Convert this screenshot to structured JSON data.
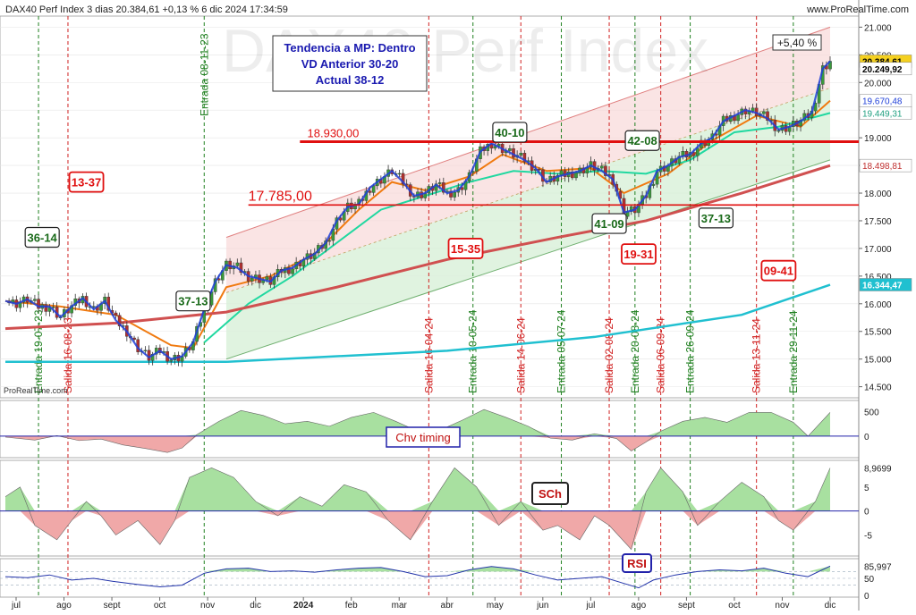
{
  "header": {
    "title": "DAX40 Perf Index 3 dias 20.384,61 +0,13 % 6 dic 2024 17:34:59",
    "url": "www.ProRealTime.com",
    "source_tag": "ProRealTime.com",
    "watermark": "DAX40 Perf Index"
  },
  "colors": {
    "price_up": "#1f3fd8",
    "price_down": "#e02020",
    "ma_fast": "#f07a10",
    "ma_mid": "#20d8a0",
    "ma_slow": "#d05050",
    "ma_long": "#20c0d0",
    "resistance": "#e01010",
    "channel_upper_fill": "#f8d8d8",
    "channel_lower_fill": "#d8f0d8",
    "osc_pos": "#a8e0a0",
    "osc_neg": "#f0a8a8",
    "entry_line": "#208020",
    "exit_line": "#d02020"
  },
  "info_box": {
    "line1": "Tendencia a MP: Dentro",
    "line2": "VD Anterior 30-20",
    "line3": "Actual 38-12"
  },
  "chart_data": [
    {
      "type": "candlestick",
      "title": "DAX40 Perf Index 3 dias",
      "ylim": [
        14300,
        21200
      ],
      "y_ticks": [
        "21.000",
        "20.500",
        "20.000",
        "19.500",
        "19.000",
        "18.500",
        "18.000",
        "17.500",
        "17.000",
        "16.500",
        "16.000",
        "15.500",
        "15.000",
        "14.500"
      ],
      "x_ticks": [
        "jul",
        "ago",
        "sept",
        "oct",
        "nov",
        "dic",
        "2024",
        "feb",
        "mar",
        "abr",
        "may",
        "jun",
        "jul",
        "ago",
        "sept",
        "oct",
        "nov",
        "dic"
      ],
      "close_path": [
        [
          0,
          16050
        ],
        [
          3,
          16000
        ],
        [
          6,
          16080
        ],
        [
          9,
          15950
        ],
        [
          12,
          15950
        ],
        [
          15,
          15760
        ],
        [
          18,
          15950
        ],
        [
          21,
          16100
        ],
        [
          24,
          15900
        ],
        [
          27,
          16050
        ],
        [
          30,
          15700
        ],
        [
          33,
          15500
        ],
        [
          36,
          15200
        ],
        [
          39,
          15030
        ],
        [
          42,
          15150
        ],
        [
          45,
          15000
        ],
        [
          48,
          15050
        ],
        [
          51,
          15300
        ],
        [
          54,
          15900
        ],
        [
          57,
          16400
        ],
        [
          60,
          16700
        ],
        [
          63,
          16650
        ],
        [
          66,
          16500
        ],
        [
          69,
          16450
        ],
        [
          72,
          16400
        ],
        [
          75,
          16600
        ],
        [
          78,
          16650
        ],
        [
          81,
          16800
        ],
        [
          84,
          16900
        ],
        [
          87,
          17100
        ],
        [
          90,
          17500
        ],
        [
          93,
          17750
        ],
        [
          96,
          17800
        ],
        [
          99,
          18100
        ],
        [
          102,
          18250
        ],
        [
          105,
          18400
        ],
        [
          108,
          18200
        ],
        [
          111,
          17950
        ],
        [
          114,
          18000
        ],
        [
          117,
          18150
        ],
        [
          120,
          18000
        ],
        [
          123,
          18050
        ],
        [
          126,
          18300
        ],
        [
          129,
          18750
        ],
        [
          132,
          18900
        ],
        [
          135,
          18800
        ],
        [
          138,
          18700
        ],
        [
          141,
          18600
        ],
        [
          144,
          18450
        ],
        [
          147,
          18200
        ],
        [
          150,
          18300
        ],
        [
          153,
          18350
        ],
        [
          156,
          18400
        ],
        [
          159,
          18500
        ],
        [
          162,
          18400
        ],
        [
          165,
          18250
        ],
        [
          168,
          17650
        ],
        [
          171,
          17700
        ],
        [
          174,
          17950
        ],
        [
          177,
          18400
        ],
        [
          180,
          18500
        ],
        [
          183,
          18650
        ],
        [
          186,
          18700
        ],
        [
          189,
          18900
        ],
        [
          192,
          19000
        ],
        [
          195,
          19300
        ],
        [
          198,
          19400
        ],
        [
          201,
          19500
        ],
        [
          204,
          19450
        ],
        [
          207,
          19350
        ],
        [
          210,
          19150
        ],
        [
          213,
          19200
        ],
        [
          216,
          19300
        ],
        [
          219,
          19450
        ],
        [
          222,
          20250
        ],
        [
          224,
          20384
        ]
      ],
      "moving_averages": [
        {
          "name": "ma_fast",
          "color": "#f07a10",
          "points": [
            [
              0,
              16050
            ],
            [
              15,
              15950
            ],
            [
              30,
              15800
            ],
            [
              45,
              15250
            ],
            [
              51,
              15200
            ],
            [
              60,
              16300
            ],
            [
              72,
              16500
            ],
            [
              84,
              16900
            ],
            [
              96,
              17700
            ],
            [
              105,
              18200
            ],
            [
              114,
              18050
            ],
            [
              126,
              18300
            ],
            [
              135,
              18700
            ],
            [
              147,
              18400
            ],
            [
              159,
              18450
            ],
            [
              168,
              18000
            ],
            [
              180,
              18350
            ],
            [
              192,
              18950
            ],
            [
              204,
              19400
            ],
            [
              216,
              19200
            ],
            [
              224,
              19670
            ]
          ]
        },
        {
          "name": "ma_mid",
          "color": "#20d8a0",
          "points": [
            [
              54,
              15300
            ],
            [
              66,
              16000
            ],
            [
              78,
              16500
            ],
            [
              90,
              17100
            ],
            [
              102,
              17700
            ],
            [
              114,
              17950
            ],
            [
              126,
              18200
            ],
            [
              138,
              18400
            ],
            [
              150,
              18350
            ],
            [
              162,
              18400
            ],
            [
              174,
              18350
            ],
            [
              186,
              18600
            ],
            [
              198,
              19100
            ],
            [
              210,
              19200
            ],
            [
              224,
              19449
            ]
          ]
        },
        {
          "name": "ma_slow",
          "color": "#d05050",
          "points": [
            [
              0,
              15550
            ],
            [
              30,
              15650
            ],
            [
              60,
              15850
            ],
            [
              90,
              16300
            ],
            [
              120,
              16800
            ],
            [
              150,
              17200
            ],
            [
              174,
              17500
            ],
            [
              200,
              18000
            ],
            [
              224,
              18498
            ]
          ]
        },
        {
          "name": "ma_long",
          "color": "#20c0d0",
          "points": [
            [
              0,
              14950
            ],
            [
              60,
              14950
            ],
            [
              120,
              15150
            ],
            [
              160,
              15400
            ],
            [
              200,
              15800
            ],
            [
              224,
              16344
            ]
          ]
        }
      ],
      "price_labels": [
        {
          "value": 21000,
          "text": "",
          "type": "tick"
        },
        {
          "value": 20384.61,
          "text": "20.384,61",
          "style": "last"
        },
        {
          "value": 20249.92,
          "text": "20.249,92",
          "style": "plain"
        },
        {
          "value": 19670.48,
          "text": "19.670,48",
          "style": "blue"
        },
        {
          "value": 19449.31,
          "text": "19.449,31",
          "style": "green"
        },
        {
          "value": 18498.81,
          "text": "18.498,81",
          "style": "red"
        },
        {
          "value": 16344.47,
          "text": "16.344,47",
          "style": "cyan"
        }
      ],
      "resistance_lines": [
        {
          "label": "18.930,00",
          "value": 18930
        },
        {
          "label": "17.785,00",
          "value": 17785
        }
      ],
      "change_badge": "+5,40 %",
      "score_labels": [
        {
          "text": "36-14",
          "kind": "green"
        },
        {
          "text": "13-37",
          "kind": "red"
        },
        {
          "text": "37-13",
          "kind": "green"
        },
        {
          "text": "15-35",
          "kind": "red"
        },
        {
          "text": "40-10",
          "kind": "green"
        },
        {
          "text": "41-09",
          "kind": "green"
        },
        {
          "text": "42-08",
          "kind": "green"
        },
        {
          "text": "19-31",
          "kind": "red"
        },
        {
          "text": "37-13",
          "kind": "green"
        },
        {
          "text": "09-41",
          "kind": "red"
        }
      ],
      "signals": [
        {
          "text": "Entrada 19-07-23",
          "kind": "entry"
        },
        {
          "text": "Salida 16-08-23",
          "kind": "exit"
        },
        {
          "text": "Entrada 08-11-23",
          "kind": "entry"
        },
        {
          "text": "Salida 16-04-24",
          "kind": "exit"
        },
        {
          "text": "Entrada 10-05-24",
          "kind": "entry"
        },
        {
          "text": "Salida 14-06-24",
          "kind": "exit"
        },
        {
          "text": "Entrada 05-07-24",
          "kind": "entry"
        },
        {
          "text": "Salida 02-08-24",
          "kind": "exit"
        },
        {
          "text": "Entrada 20-08-24",
          "kind": "entry"
        },
        {
          "text": "Salida 06-09-24",
          "kind": "exit"
        },
        {
          "text": "Entrada 26-09-24",
          "kind": "entry"
        },
        {
          "text": "Salida 13-11-24",
          "kind": "exit"
        },
        {
          "text": "Entrada 29-11-24",
          "kind": "entry"
        }
      ]
    },
    {
      "type": "area",
      "title": "Chv timing",
      "y_ticks": [
        "500",
        "0"
      ],
      "points": [
        [
          0,
          -20
        ],
        [
          8,
          -80
        ],
        [
          14,
          10
        ],
        [
          20,
          -90
        ],
        [
          26,
          -60
        ],
        [
          32,
          -180
        ],
        [
          38,
          -250
        ],
        [
          44,
          -330
        ],
        [
          48,
          -240
        ],
        [
          52,
          30
        ],
        [
          58,
          300
        ],
        [
          64,
          520
        ],
        [
          70,
          420
        ],
        [
          76,
          250
        ],
        [
          82,
          300
        ],
        [
          88,
          200
        ],
        [
          94,
          380
        ],
        [
          100,
          480
        ],
        [
          106,
          300
        ],
        [
          112,
          100
        ],
        [
          118,
          120
        ],
        [
          124,
          320
        ],
        [
          130,
          540
        ],
        [
          136,
          380
        ],
        [
          142,
          200
        ],
        [
          148,
          -40
        ],
        [
          154,
          -80
        ],
        [
          160,
          50
        ],
        [
          166,
          -50
        ],
        [
          170,
          -300
        ],
        [
          174,
          -120
        ],
        [
          178,
          100
        ],
        [
          184,
          300
        ],
        [
          190,
          380
        ],
        [
          196,
          280
        ],
        [
          202,
          480
        ],
        [
          208,
          480
        ],
        [
          214,
          280
        ],
        [
          218,
          0
        ],
        [
          224,
          480
        ]
      ]
    },
    {
      "type": "area",
      "title": "SCh",
      "y_ticks": [
        "8,9699",
        "5",
        "0",
        "-5"
      ],
      "points": [
        [
          0,
          3
        ],
        [
          4,
          5
        ],
        [
          8,
          -3
        ],
        [
          14,
          -6
        ],
        [
          18,
          -2
        ],
        [
          22,
          2
        ],
        [
          26,
          -1
        ],
        [
          30,
          -5
        ],
        [
          36,
          -2
        ],
        [
          42,
          -7
        ],
        [
          46,
          -2
        ],
        [
          50,
          7
        ],
        [
          56,
          9
        ],
        [
          62,
          7
        ],
        [
          68,
          2
        ],
        [
          74,
          -1
        ],
        [
          80,
          3
        ],
        [
          86,
          1
        ],
        [
          92,
          5.5
        ],
        [
          98,
          4
        ],
        [
          104,
          -2
        ],
        [
          110,
          -6
        ],
        [
          116,
          2
        ],
        [
          122,
          9
        ],
        [
          128,
          5
        ],
        [
          134,
          -3
        ],
        [
          140,
          2
        ],
        [
          146,
          -4
        ],
        [
          150,
          -3
        ],
        [
          156,
          -6
        ],
        [
          160,
          -1
        ],
        [
          164,
          -3
        ],
        [
          170,
          -8
        ],
        [
          174,
          4
        ],
        [
          178,
          9
        ],
        [
          184,
          4
        ],
        [
          188,
          -3
        ],
        [
          194,
          2
        ],
        [
          200,
          6
        ],
        [
          206,
          3
        ],
        [
          210,
          -2
        ],
        [
          214,
          -4
        ],
        [
          220,
          2
        ],
        [
          224,
          8.97
        ]
      ]
    },
    {
      "type": "line",
      "title": "RSI",
      "y_ticks": [
        "85,997",
        "50",
        "0"
      ],
      "points": [
        [
          0,
          55
        ],
        [
          6,
          52
        ],
        [
          12,
          60
        ],
        [
          18,
          45
        ],
        [
          24,
          50
        ],
        [
          30,
          40
        ],
        [
          36,
          32
        ],
        [
          42,
          25
        ],
        [
          48,
          30
        ],
        [
          54,
          65
        ],
        [
          60,
          78
        ],
        [
          66,
          80
        ],
        [
          72,
          70
        ],
        [
          78,
          72
        ],
        [
          84,
          68
        ],
        [
          90,
          75
        ],
        [
          96,
          80
        ],
        [
          102,
          82
        ],
        [
          108,
          70
        ],
        [
          114,
          55
        ],
        [
          120,
          58
        ],
        [
          126,
          75
        ],
        [
          132,
          85
        ],
        [
          138,
          78
        ],
        [
          144,
          60
        ],
        [
          150,
          45
        ],
        [
          156,
          50
        ],
        [
          162,
          55
        ],
        [
          168,
          35
        ],
        [
          172,
          22
        ],
        [
          176,
          45
        ],
        [
          182,
          60
        ],
        [
          188,
          70
        ],
        [
          194,
          75
        ],
        [
          200,
          72
        ],
        [
          206,
          80
        ],
        [
          212,
          65
        ],
        [
          218,
          55
        ],
        [
          224,
          86
        ]
      ]
    }
  ]
}
